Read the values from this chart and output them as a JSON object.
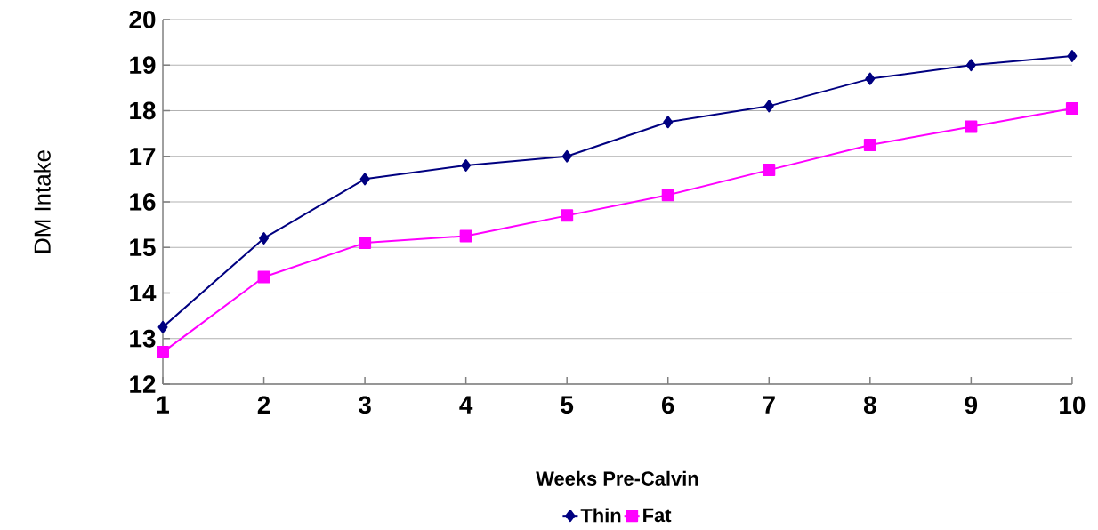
{
  "chart_data": {
    "type": "line",
    "xlabel": "Weeks Pre-Calvin",
    "ylabel": "DM Intake",
    "x": [
      1,
      2,
      3,
      4,
      5,
      6,
      7,
      8,
      9,
      10
    ],
    "series": [
      {
        "name": "Thin",
        "color": "#000080",
        "marker": "diamond",
        "values": [
          13.25,
          15.2,
          16.5,
          16.8,
          17.0,
          17.75,
          18.1,
          18.7,
          19.0,
          19.2
        ]
      },
      {
        "name": "Fat",
        "color": "#ff00ff",
        "marker": "square",
        "values": [
          12.7,
          14.35,
          15.1,
          15.25,
          15.7,
          16.15,
          16.7,
          17.25,
          17.65,
          18.05
        ]
      }
    ],
    "xlim": [
      1,
      10
    ],
    "xticks": [
      1,
      2,
      3,
      4,
      5,
      6,
      7,
      8,
      9,
      10
    ],
    "ylim": [
      12,
      20
    ],
    "yticks": [
      12,
      13,
      14,
      15,
      16,
      17,
      18,
      19,
      20
    ],
    "grid": "y",
    "legend": "bottom",
    "line_style": "solid"
  }
}
